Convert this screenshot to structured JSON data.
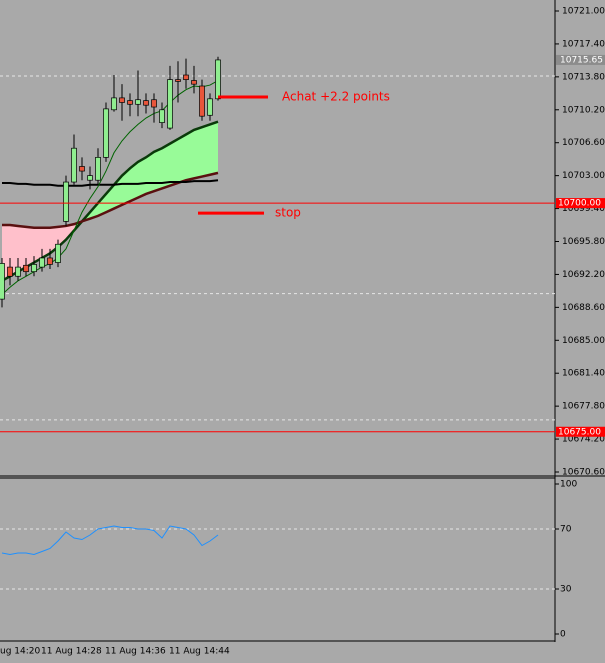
{
  "chart_data": [
    {
      "type": "candlestick",
      "open": [
        10689.5,
        10693,
        10692,
        10693.2,
        10692.5,
        10693,
        10694,
        10693.5,
        10698,
        10702.3,
        10704,
        10702.5,
        10702.5,
        10705,
        10710.2,
        10711.5,
        10711.2,
        10710.8,
        10711.2,
        10711.3,
        10708.8,
        10708.2,
        10713.5,
        10714,
        10713.4,
        10712.8,
        10709.6,
        10711.4
      ],
      "high": [
        10694,
        10694,
        10694,
        10694,
        10694.2,
        10695,
        10695,
        10696,
        10703,
        10707.5,
        10705,
        10704,
        10706,
        10711,
        10714,
        10713,
        10712,
        10714.5,
        10712,
        10712,
        10711,
        10715,
        10715.5,
        10715.8,
        10715,
        10713.5,
        10712,
        10716
      ],
      "low": [
        10688.6,
        10691,
        10691.5,
        10692,
        10692,
        10692.5,
        10692.8,
        10693,
        10697.5,
        10702,
        10702.5,
        10701.5,
        10702,
        10704.5,
        10710,
        10709,
        10709.5,
        10709.5,
        10709.8,
        10708.8,
        10708.2,
        10708,
        10711,
        10712.5,
        10712,
        10709,
        10709,
        10711.2
      ],
      "close": [
        10693.4,
        10692,
        10693,
        10692.5,
        10693.3,
        10694,
        10693.3,
        10695.5,
        10702.3,
        10706,
        10703.5,
        10703,
        10705,
        10710.3,
        10711.5,
        10711,
        10710.8,
        10711.3,
        10710.7,
        10710.5,
        10710.2,
        10713.5,
        10713.3,
        10713.5,
        10713,
        10709.5,
        10711.4,
        10715.65
      ],
      "up_color": "#90ee90",
      "down_color": "#e8553a",
      "ribbon": {
        "fast": [
          10691.5,
          10692,
          10692.5,
          10693,
          10693.5,
          10694,
          10694.5,
          10695.2,
          10696,
          10697,
          10698,
          10699,
          10700,
          10701,
          10702,
          10703,
          10703.8,
          10704.5,
          10705,
          10705.6,
          10706,
          10706.5,
          10707,
          10707.5,
          10708,
          10708.3,
          10708.6,
          10708.9
        ],
        "slow": [
          10697.6,
          10697.6,
          10697.5,
          10697.4,
          10697.3,
          10697.3,
          10697.3,
          10697.4,
          10697.5,
          10697.7,
          10698,
          10698.3,
          10698.6,
          10699,
          10699.4,
          10699.8,
          10700.2,
          10700.6,
          10701,
          10701.3,
          10701.6,
          10701.9,
          10702.2,
          10702.5,
          10702.7,
          10702.9,
          10703.1,
          10703.3
        ],
        "up_color": "#98fb98",
        "down_color": "#ffc0cb"
      },
      "lines": [
        {
          "color": "#000000",
          "values": [
            10702.2,
            10702.2,
            10702.1,
            10702.1,
            10702,
            10702,
            10702,
            10701.9,
            10701.9,
            10701.9,
            10701.9,
            10702,
            10702,
            10702,
            10702,
            10702.1,
            10702.1,
            10702.1,
            10702.2,
            10702.2,
            10702.2,
            10702.3,
            10702.3,
            10702.3,
            10702.4,
            10702.4,
            10702.4,
            10702.5
          ]
        },
        {
          "color": "#006400",
          "values": [
            10690,
            10690.8,
            10691.5,
            10692,
            10692.5,
            10693,
            10693.4,
            10694,
            10695,
            10697,
            10699,
            10700.5,
            10701.8,
            10703.5,
            10705.5,
            10706.8,
            10707.8,
            10708.6,
            10709.3,
            10709.8,
            10710.1,
            10711,
            10711.8,
            10712.4,
            10712.8,
            10712.7,
            10712.9,
            10713.4
          ]
        }
      ],
      "categories": [
        null,
        null,
        null,
        null,
        null,
        "11 Aug 14:28",
        null,
        null,
        null,
        null,
        null,
        null,
        null,
        "11 Aug 14:36",
        null,
        null,
        null,
        null,
        null,
        null,
        null,
        "11 Aug 14:44",
        null,
        null,
        null,
        null,
        null,
        null
      ],
      "left_time_label": "ug 14:20",
      "ylim": [
        10670.6,
        10721.0
      ],
      "yticks": [
        {
          "value": 10721.0,
          "label": "10721.00"
        },
        {
          "value": 10717.4,
          "label": "10717.40"
        },
        {
          "value": 10713.8,
          "label": "10713.80"
        },
        {
          "value": 10710.2,
          "label": "10710.20"
        },
        {
          "value": 10706.6,
          "label": "10706.60"
        },
        {
          "value": 10703.0,
          "label": "10703.00"
        },
        {
          "value": 10699.4,
          "label": "10699.40"
        },
        {
          "value": 10695.8,
          "label": "10695.80"
        },
        {
          "value": 10692.2,
          "label": "10692.20"
        },
        {
          "value": 10688.6,
          "label": "10688.60"
        },
        {
          "value": 10685.0,
          "label": "10685.00"
        },
        {
          "value": 10681.4,
          "label": "10681.40"
        },
        {
          "value": 10677.8,
          "label": "10677.80"
        },
        {
          "value": 10674.2,
          "label": "10674.20"
        },
        {
          "value": 10670.6,
          "label": "10670.60"
        }
      ],
      "dashed_levels": [
        10713.9,
        10690.1,
        10676.3
      ],
      "levels": [
        {
          "value": 10700.0,
          "label": "10700.00"
        },
        {
          "value": 10675.0,
          "label": "10675.00"
        }
      ],
      "level_color": "#ff0000",
      "current_price": 10715.65,
      "annotations": [
        {
          "text": "Achat +2.2 points",
          "value": 10711.6
        },
        {
          "text": "stop",
          "value": 10698.9
        }
      ]
    },
    {
      "type": "line",
      "values": [
        54,
        53,
        54,
        54,
        53,
        55,
        57,
        62,
        68,
        64,
        63,
        66,
        70,
        71,
        72,
        71,
        71,
        70,
        70,
        69,
        64,
        72,
        71,
        70,
        66,
        59,
        62,
        66
      ],
      "color": "#1e90ff",
      "ylim": [
        0,
        100
      ],
      "yticks": [
        100,
        70,
        30,
        0
      ],
      "dashed_levels": [
        70,
        30
      ]
    }
  ]
}
